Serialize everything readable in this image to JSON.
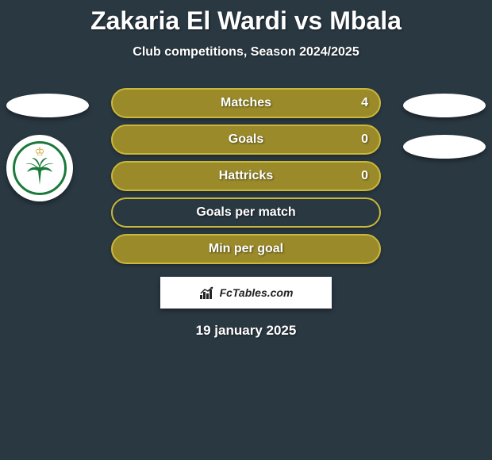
{
  "title": "Zakaria El Wardi vs Mbala",
  "subtitle": "Club competitions, Season 2024/2025",
  "stats": [
    {
      "label": "Matches",
      "value": "4",
      "fill": "#9a8a2a",
      "border": "#c9b83a"
    },
    {
      "label": "Goals",
      "value": "0",
      "fill": "#9a8a2a",
      "border": "#c9b83a"
    },
    {
      "label": "Hattricks",
      "value": "0",
      "fill": "#9a8a2a",
      "border": "#c9b83a"
    },
    {
      "label": "Goals per match",
      "value": "",
      "fill": "transparent",
      "border": "#c9b83a"
    },
    {
      "label": "Min per goal",
      "value": "",
      "fill": "#9a8a2a",
      "border": "#c9b83a"
    }
  ],
  "banner": {
    "text": "FcTables.com"
  },
  "date": "19 january 2025",
  "colors": {
    "background": "#2a3842",
    "accent": "#c9b83a",
    "white": "#ffffff",
    "club_green": "#1a7a3a",
    "club_gold": "#c9a020"
  }
}
